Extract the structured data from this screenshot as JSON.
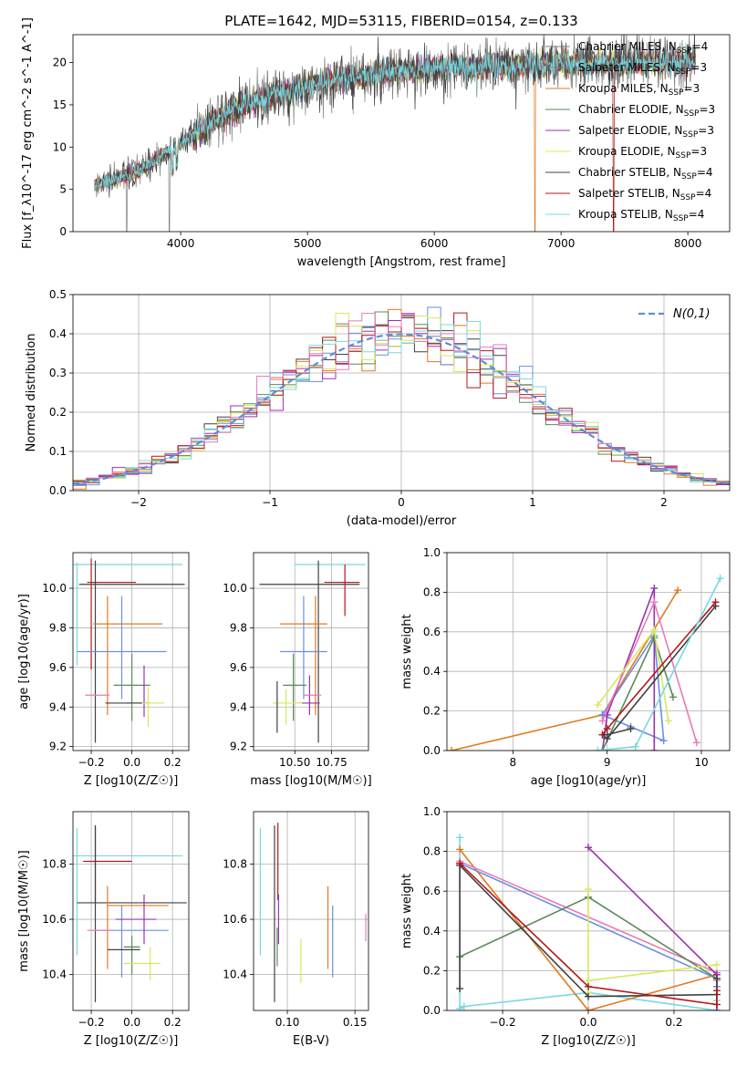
{
  "figure_title": "PLATE=1642, MJD=53115, FIBERID=0154, z=0.133",
  "series_colors": [
    "#808080",
    "#a0522d",
    "#e07b20",
    "#5b8a5b",
    "#9b30b0",
    "#d8e85a",
    "#404040",
    "#b01818",
    "#78d8e0",
    "#e878b8",
    "#6a8fe0"
  ],
  "normal_color": "#5b8fd8",
  "chart_data": [
    {
      "id": "spectrum",
      "type": "line",
      "title": "PLATE=1642, MJD=53115, FIBERID=0154, z=0.133",
      "xlabel": "wavelength [Angstrom, rest frame]",
      "ylabel": "Flux [f_λ10^-17 erg cm^-2 s^-1 A^-1]",
      "xlim": [
        3150,
        8330
      ],
      "ylim": [
        0,
        23.3
      ],
      "xticks": [
        4000,
        5000,
        6000,
        7000,
        8000
      ],
      "yticks": [
        0,
        5,
        10,
        15,
        20
      ],
      "grid": false,
      "legend_position": "upper-right",
      "continuum": {
        "x": [
          3320,
          3500,
          3700,
          3900,
          4100,
          4300,
          4500,
          4800,
          5100,
          5400,
          5700,
          6000,
          6300,
          6600,
          6900,
          7200,
          7500,
          7800,
          8060
        ],
        "y": [
          5.5,
          6.2,
          7.5,
          9.5,
          11.5,
          13.5,
          15.0,
          16.3,
          17.5,
          18.3,
          18.9,
          19.3,
          19.5,
          19.6,
          19.8,
          19.9,
          20.0,
          20.0,
          20.1
        ]
      },
      "series": [
        {
          "name": "Chabrier MILES",
          "nssp": "4"
        },
        {
          "name": "Salpeter MILES",
          "nssp": "3"
        },
        {
          "name": "Kroupa MILES",
          "nssp": "3"
        },
        {
          "name": "Chabrier ELODIE",
          "nssp": "3"
        },
        {
          "name": "Salpeter ELODIE",
          "nssp": "3"
        },
        {
          "name": "Kroupa ELODIE",
          "nssp": "3"
        },
        {
          "name": "Chabrier STELIB",
          "nssp": "4"
        },
        {
          "name": "Salpeter STELIB",
          "nssp": "4"
        },
        {
          "name": "Kroupa STELIB",
          "nssp": "4"
        }
      ]
    },
    {
      "id": "residuals",
      "type": "step",
      "xlabel": "(data-model)/error",
      "ylabel": "Normed distribution",
      "xlim": [
        -2.5,
        2.5
      ],
      "ylim": [
        0,
        0.5
      ],
      "xticks": [
        -2,
        -1,
        0,
        1,
        2
      ],
      "xtick_labels": [
        "−2",
        "−1",
        "0",
        "1",
        "2"
      ],
      "yticks": [
        0,
        0.1,
        0.2,
        0.3,
        0.4,
        0.5
      ],
      "ytick_labels": [
        "0.0",
        "0.1",
        "0.2",
        "0.3",
        "0.4",
        "0.5"
      ],
      "grid": true,
      "legend_position": "upper-right",
      "legend_label": "N(0,1)",
      "bin_width": 0.1
    },
    {
      "id": "age-vs-Z",
      "type": "errorbar",
      "xlabel": "Z [log10(Z/Z☉)]",
      "ylabel": "age [log10(age/yr)]",
      "xlim": [
        -0.29,
        0.28
      ],
      "ylim": [
        9.18,
        10.18
      ],
      "xticks": [
        -0.2,
        0.0,
        0.2
      ],
      "xtick_labels": [
        "−0.2",
        "0.0",
        "0.2"
      ],
      "yticks": [
        9.2,
        9.4,
        9.6,
        9.8,
        10.0
      ],
      "ytick_labels": [
        "9.2",
        "9.4",
        "9.6",
        "9.8",
        "10.0"
      ],
      "grid": true,
      "points": [
        {
          "x": -0.02,
          "xerr": 0.27,
          "y": 10.12,
          "yerr": 0.0,
          "color": "#78d8e0"
        },
        {
          "x": 0.0,
          "xerr": 0.26,
          "y": 10.02,
          "yerr": 0.0,
          "color": "#404040"
        },
        {
          "x": -0.1,
          "xerr": 0.12,
          "y": 10.03,
          "yerr": 0.0,
          "color": "#b01818"
        },
        {
          "x": -0.27,
          "xerr": 0.0,
          "y": 9.87,
          "yerr": 0.26,
          "color": "#78d8e0"
        },
        {
          "x": -0.2,
          "xerr": 0.0,
          "y": 9.87,
          "yerr": 0.28,
          "color": "#b01818"
        },
        {
          "x": -0.18,
          "xerr": 0.0,
          "y": 9.68,
          "yerr": 0.46,
          "color": "#404040"
        },
        {
          "x": -0.02,
          "xerr": 0.17,
          "y": 9.82,
          "yerr": 0.0,
          "color": "#e07b20"
        },
        {
          "x": -0.12,
          "xerr": 0.0,
          "y": 9.66,
          "yerr": 0.3,
          "color": "#e07b20"
        },
        {
          "x": -0.05,
          "xerr": 0.22,
          "y": 9.68,
          "yerr": 0.0,
          "color": "#6a8fe0"
        },
        {
          "x": -0.05,
          "xerr": 0.0,
          "y": 9.7,
          "yerr": 0.26,
          "color": "#6a8fe0"
        },
        {
          "x": 0.0,
          "xerr": 0.0,
          "y": 9.5,
          "yerr": 0.17,
          "color": "#5b8a5b"
        },
        {
          "x": 0.0,
          "xerr": 0.09,
          "y": 9.51,
          "yerr": 0.0,
          "color": "#5b8a5b"
        },
        {
          "x": 0.06,
          "xerr": 0.0,
          "y": 9.48,
          "yerr": 0.13,
          "color": "#9b30b0"
        },
        {
          "x": 0.03,
          "xerr": 0.06,
          "y": 9.42,
          "yerr": 0.0,
          "color": "#9b30b0"
        },
        {
          "x": -0.17,
          "xerr": 0.06,
          "y": 9.46,
          "yerr": 0.0,
          "color": "#e878b8"
        },
        {
          "x": 0.08,
          "xerr": 0.0,
          "y": 9.4,
          "yerr": 0.1,
          "color": "#d8e85a"
        },
        {
          "x": 0.08,
          "xerr": 0.08,
          "y": 9.42,
          "yerr": 0.0,
          "color": "#d8e85a"
        },
        {
          "x": -0.04,
          "xerr": 0.09,
          "y": 9.42,
          "yerr": 0.0,
          "color": "#404040"
        }
      ]
    },
    {
      "id": "age-vs-mass",
      "type": "errorbar",
      "xlabel": "mass [log10(M/M☉)]",
      "ylabel": "",
      "xlim": [
        10.22,
        11.0
      ],
      "ylim": [
        9.18,
        10.18
      ],
      "xticks": [
        10.5,
        10.75
      ],
      "xtick_labels": [
        "10.50",
        "10.75"
      ],
      "yticks": [
        9.2,
        9.4,
        9.6,
        9.8,
        10.0
      ],
      "ytick_labels": [
        "9.2",
        "9.4",
        "9.6",
        "9.8",
        "10.0"
      ],
      "grid": true,
      "points": [
        {
          "x": 10.74,
          "xerr": 0.24,
          "y": 10.12,
          "yerr": 0.0,
          "color": "#78d8e0"
        },
        {
          "x": 10.6,
          "xerr": 0.34,
          "y": 10.02,
          "yerr": 0.0,
          "color": "#404040"
        },
        {
          "x": 10.82,
          "xerr": 0.12,
          "y": 10.03,
          "yerr": 0.0,
          "color": "#b01818"
        },
        {
          "x": 10.84,
          "xerr": 0.0,
          "y": 9.99,
          "yerr": 0.13,
          "color": "#b01818"
        },
        {
          "x": 10.66,
          "xerr": 0.0,
          "y": 9.68,
          "yerr": 0.46,
          "color": "#404040"
        },
        {
          "x": 10.56,
          "xerr": 0.16,
          "y": 9.82,
          "yerr": 0.0,
          "color": "#e07b20"
        },
        {
          "x": 10.64,
          "xerr": 0.0,
          "y": 9.66,
          "yerr": 0.3,
          "color": "#e07b20"
        },
        {
          "x": 10.56,
          "xerr": 0.16,
          "y": 9.68,
          "yerr": 0.0,
          "color": "#6a8fe0"
        },
        {
          "x": 10.56,
          "xerr": 0.0,
          "y": 9.7,
          "yerr": 0.26,
          "color": "#6a8fe0"
        },
        {
          "x": 10.49,
          "xerr": 0.0,
          "y": 9.5,
          "yerr": 0.17,
          "color": "#5b8a5b"
        },
        {
          "x": 10.5,
          "xerr": 0.08,
          "y": 9.51,
          "yerr": 0.0,
          "color": "#5b8a5b"
        },
        {
          "x": 10.6,
          "xerr": 0.0,
          "y": 9.46,
          "yerr": 0.1,
          "color": "#9b30b0"
        },
        {
          "x": 10.6,
          "xerr": 0.07,
          "y": 9.42,
          "yerr": 0.0,
          "color": "#9b30b0"
        },
        {
          "x": 10.62,
          "xerr": 0.06,
          "y": 9.46,
          "yerr": 0.0,
          "color": "#e878b8"
        },
        {
          "x": 10.44,
          "xerr": 0.0,
          "y": 9.4,
          "yerr": 0.09,
          "color": "#d8e85a"
        },
        {
          "x": 10.45,
          "xerr": 0.1,
          "y": 9.42,
          "yerr": 0.0,
          "color": "#d8e85a"
        },
        {
          "x": 10.38,
          "xerr": 0.0,
          "y": 9.4,
          "yerr": 0.13,
          "color": "#404040"
        }
      ]
    },
    {
      "id": "massweight-vs-age",
      "type": "line",
      "xlabel": "age [log10(age/yr)]",
      "ylabel": "mass weight",
      "xlim": [
        7.3,
        10.3
      ],
      "ylim": [
        0,
        1
      ],
      "xticks": [
        8,
        9,
        10
      ],
      "xtick_labels": [
        "8",
        "9",
        "10"
      ],
      "yticks": [
        0,
        0.2,
        0.4,
        0.6,
        0.8,
        1.0
      ],
      "ytick_labels": [
        "0.0",
        "0.2",
        "0.4",
        "0.6",
        "0.8",
        "1.0"
      ],
      "grid": true,
      "series": [
        {
          "color": "#e07b20",
          "x": [
            7.35,
            8.95,
            9.75
          ],
          "y": [
            0.0,
            0.18,
            0.81
          ]
        },
        {
          "color": "#6a8fe0",
          "x": [
            8.95,
            9.25,
            9.6,
            9.5,
            8.95
          ],
          "y": [
            0.18,
            0.12,
            0.05,
            0.58,
            0.18
          ]
        },
        {
          "color": "#9b30b0",
          "x": [
            8.95,
            9.0,
            9.5,
            9.5
          ],
          "y": [
            0.0,
            0.18,
            0.82,
            0.0
          ]
        },
        {
          "color": "#5b8a5b",
          "x": [
            8.95,
            9.5,
            9.7
          ],
          "y": [
            0.0,
            0.57,
            0.27
          ]
        },
        {
          "color": "#e878b8",
          "x": [
            8.95,
            9.5,
            9.95
          ],
          "y": [
            0.15,
            0.75,
            0.04
          ]
        },
        {
          "color": "#d8e85a",
          "x": [
            8.9,
            9.5,
            9.65
          ],
          "y": [
            0.23,
            0.61,
            0.15
          ]
        },
        {
          "color": "#404040",
          "x": [
            8.95,
            9.0,
            10.15
          ],
          "y": [
            0.08,
            0.06,
            0.73
          ]
        },
        {
          "color": "#b01818",
          "x": [
            8.95,
            9.0,
            10.15
          ],
          "y": [
            0.08,
            0.11,
            0.75
          ]
        },
        {
          "color": "#78d8e0",
          "x": [
            8.9,
            9.3,
            10.2
          ],
          "y": [
            0.0,
            0.02,
            0.87
          ]
        },
        {
          "color": "#404040",
          "x": [
            9.0,
            9.25
          ],
          "y": [
            0.08,
            0.11
          ]
        }
      ]
    },
    {
      "id": "mass-vs-Z",
      "type": "errorbar",
      "xlabel": "Z [log10(Z/Z☉)]",
      "ylabel": "mass [log10(M/M☉)]",
      "xlim": [
        -0.29,
        0.28
      ],
      "ylim": [
        10.27,
        10.99
      ],
      "xticks": [
        -0.2,
        0.0,
        0.2
      ],
      "xtick_labels": [
        "−0.2",
        "0.0",
        "0.2"
      ],
      "yticks": [
        10.4,
        10.6,
        10.8
      ],
      "ytick_labels": [
        "10.4",
        "10.6",
        "10.8"
      ],
      "grid": true,
      "points": [
        {
          "x": -0.02,
          "xerr": 0.27,
          "y": 10.83,
          "yerr": 0.0,
          "color": "#78d8e0"
        },
        {
          "x": -0.27,
          "xerr": 0.0,
          "y": 10.7,
          "yerr": 0.23,
          "color": "#78d8e0"
        },
        {
          "x": -0.12,
          "xerr": 0.12,
          "y": 10.81,
          "yerr": 0.0,
          "color": "#b01818"
        },
        {
          "x": -0.18,
          "xerr": 0.0,
          "y": 10.8,
          "yerr": 0.14,
          "color": "#b01818"
        },
        {
          "x": 0.0,
          "xerr": 0.27,
          "y": 10.66,
          "yerr": 0.0,
          "color": "#404040"
        },
        {
          "x": -0.18,
          "xerr": 0.0,
          "y": 10.62,
          "yerr": 0.32,
          "color": "#404040"
        },
        {
          "x": 0.03,
          "xerr": 0.15,
          "y": 10.65,
          "yerr": 0.0,
          "color": "#e07b20"
        },
        {
          "x": -0.12,
          "xerr": 0.0,
          "y": 10.57,
          "yerr": 0.15,
          "color": "#e07b20"
        },
        {
          "x": 0.0,
          "xerr": 0.18,
          "y": 10.56,
          "yerr": 0.0,
          "color": "#6a8fe0"
        },
        {
          "x": -0.05,
          "xerr": 0.0,
          "y": 10.52,
          "yerr": 0.13,
          "color": "#6a8fe0"
        },
        {
          "x": -0.16,
          "xerr": 0.06,
          "y": 10.56,
          "yerr": 0.0,
          "color": "#e878b8"
        },
        {
          "x": 0.02,
          "xerr": 0.1,
          "y": 10.6,
          "yerr": 0.0,
          "color": "#9b30b0"
        },
        {
          "x": 0.06,
          "xerr": 0.0,
          "y": 10.6,
          "yerr": 0.09,
          "color": "#9b30b0"
        },
        {
          "x": 0.0,
          "xerr": 0.04,
          "y": 10.5,
          "yerr": 0.0,
          "color": "#5b8a5b"
        },
        {
          "x": 0.0,
          "xerr": 0.0,
          "y": 10.47,
          "yerr": 0.07,
          "color": "#5b8a5b"
        },
        {
          "x": -0.04,
          "xerr": 0.08,
          "y": 10.49,
          "yerr": 0.0,
          "color": "#404040"
        },
        {
          "x": 0.05,
          "xerr": 0.09,
          "y": 10.44,
          "yerr": 0.0,
          "color": "#d8e85a"
        },
        {
          "x": 0.09,
          "xerr": 0.0,
          "y": 10.44,
          "yerr": 0.06,
          "color": "#d8e85a"
        }
      ]
    },
    {
      "id": "mass-vs-EBV",
      "type": "errorbar",
      "xlabel": "E(B-V)",
      "ylabel": "",
      "xlim": [
        0.075,
        0.16
      ],
      "ylim": [
        10.27,
        10.99
      ],
      "xticks": [
        0.1,
        0.15
      ],
      "xtick_labels": [
        "0.10",
        "0.15"
      ],
      "yticks": [
        10.4,
        10.6,
        10.8
      ],
      "ytick_labels": [
        "10.4",
        "10.6",
        "10.8"
      ],
      "grid": true,
      "points": [
        {
          "x": 0.08,
          "xerr": 0.0,
          "y": 10.7,
          "yerr": 0.23,
          "color": "#78d8e0"
        },
        {
          "x": 0.0905,
          "xerr": 0.0,
          "y": 10.62,
          "yerr": 0.32,
          "color": "#404040"
        },
        {
          "x": 0.093,
          "xerr": 0.0,
          "y": 10.81,
          "yerr": 0.14,
          "color": "#b01818"
        },
        {
          "x": 0.0935,
          "xerr": 0.0,
          "y": 10.6,
          "yerr": 0.09,
          "color": "#9b30b0"
        },
        {
          "x": 0.0925,
          "xerr": 0.0,
          "y": 10.5,
          "yerr": 0.07,
          "color": "#5b8a5b"
        },
        {
          "x": 0.11,
          "xerr": 0.0,
          "y": 10.45,
          "yerr": 0.08,
          "color": "#d8e85a"
        },
        {
          "x": 0.13,
          "xerr": 0.0,
          "y": 10.57,
          "yerr": 0.15,
          "color": "#e07b20"
        },
        {
          "x": 0.1335,
          "xerr": 0.0,
          "y": 10.52,
          "yerr": 0.13,
          "color": "#6a8fe0"
        },
        {
          "x": 0.158,
          "xerr": 0.0,
          "y": 10.57,
          "yerr": 0.05,
          "color": "#e878b8"
        }
      ]
    },
    {
      "id": "massweight-vs-Z",
      "type": "line",
      "xlabel": "Z [log10(Z/Z☉)]",
      "ylabel": "mass weight",
      "xlim": [
        -0.33,
        0.33
      ],
      "ylim": [
        0,
        1
      ],
      "xticks": [
        -0.2,
        0.0,
        0.2
      ],
      "xtick_labels": [
        "−0.2",
        "0.0",
        "0.2"
      ],
      "yticks": [
        0,
        0.2,
        0.4,
        0.6,
        0.8,
        1.0
      ],
      "ytick_labels": [
        "0.0",
        "0.2",
        "0.4",
        "0.6",
        "0.8",
        "1.0"
      ],
      "grid": true,
      "series": [
        {
          "color": "#78d8e0",
          "x": [
            -0.3,
            -0.3,
            -0.29,
            0.0,
            0.3,
            0.3
          ],
          "y": [
            0.87,
            0.01,
            0.02,
            0.09,
            0.0,
            0.05
          ]
        },
        {
          "color": "#e07b20",
          "x": [
            -0.3,
            0.0,
            0.3,
            0.3
          ],
          "y": [
            0.81,
            0.0,
            0.18,
            0.12
          ]
        },
        {
          "color": "#6a8fe0",
          "x": [
            -0.3,
            0.3,
            0.3
          ],
          "y": [
            0.74,
            0.16,
            0.12
          ]
        },
        {
          "color": "#e878b8",
          "x": [
            -0.3,
            0.3,
            0.3
          ],
          "y": [
            0.75,
            0.19,
            0.15
          ]
        },
        {
          "color": "#5b8a5b",
          "x": [
            -0.3,
            0.0,
            0.3
          ],
          "y": [
            0.27,
            0.57,
            0.16
          ]
        },
        {
          "color": "#9b30b0",
          "x": [
            0.0,
            0.3,
            0.3
          ],
          "y": [
            0.82,
            0.18,
            0.0
          ]
        },
        {
          "color": "#d8e85a",
          "x": [
            0.0,
            0.0,
            0.0,
            0.3
          ],
          "y": [
            0.61,
            0.09,
            0.15,
            0.23
          ]
        },
        {
          "color": "#404040",
          "x": [
            -0.3,
            -0.3,
            0.0,
            0.3,
            0.3
          ],
          "y": [
            0.11,
            0.73,
            0.07,
            0.08,
            0.16
          ]
        },
        {
          "color": "#b01818",
          "x": [
            -0.3,
            0.0,
            0.3,
            0.3
          ],
          "y": [
            0.74,
            0.12,
            0.03,
            0.1
          ]
        }
      ]
    }
  ]
}
